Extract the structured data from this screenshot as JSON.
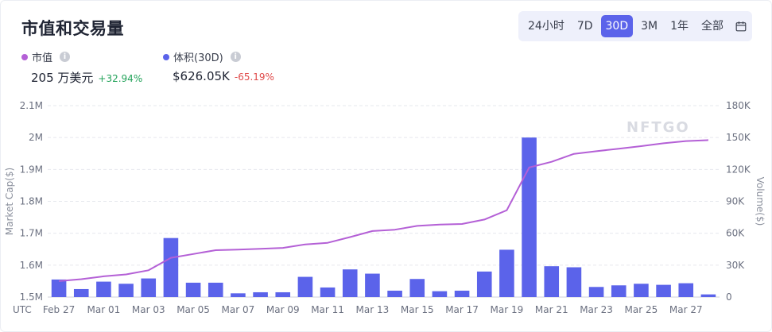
{
  "title": "市值和交易量",
  "range_options": [
    {
      "label": "24小时",
      "active": false
    },
    {
      "label": "7D",
      "active": false
    },
    {
      "label": "30D",
      "active": true
    },
    {
      "label": "3M",
      "active": false
    },
    {
      "label": "1年",
      "active": false
    },
    {
      "label": "全部",
      "active": false
    }
  ],
  "calendar_icon": "calendar-icon",
  "legend": {
    "market_cap": {
      "label": "市值",
      "value": "205 万美元",
      "change": "+32.94%",
      "color": "#b460d6"
    },
    "volume": {
      "label": "体积(30D)",
      "value": "$626.05K",
      "change": "-65.19%",
      "color": "#5b63ea"
    }
  },
  "watermark": "NFTGO",
  "chart_data": {
    "type": "bar+line",
    "x_timezone_label": "UTC",
    "x": [
      "Feb 27",
      "Feb 28",
      "Mar 01",
      "Mar 02",
      "Mar 03",
      "Mar 04",
      "Mar 05",
      "Mar 06",
      "Mar 07",
      "Mar 08",
      "Mar 09",
      "Mar 10",
      "Mar 11",
      "Mar 12",
      "Mar 13",
      "Mar 14",
      "Mar 15",
      "Mar 16",
      "Mar 17",
      "Mar 18",
      "Mar 19",
      "Mar 20",
      "Mar 21",
      "Mar 22",
      "Mar 23",
      "Mar 24",
      "Mar 25",
      "Mar 26",
      "Mar 27",
      "Mar 28"
    ],
    "x_tick_labels": [
      "Feb 27",
      "Mar 01",
      "Mar 03",
      "Mar 05",
      "Mar 07",
      "Mar 09",
      "Mar 11",
      "Mar 13",
      "Mar 15",
      "Mar 17",
      "Mar 19",
      "Mar 21",
      "Mar 23",
      "Mar 25",
      "Mar 27"
    ],
    "ylabel_left": "Market Cap($)",
    "ylabel_right": "Volume($)",
    "ylim_left": [
      1500000,
      2100000
    ],
    "ylim_right": [
      0,
      180000
    ],
    "y_ticks_left": [
      "1.5M",
      "1.6M",
      "1.7M",
      "1.8M",
      "1.9M",
      "2M",
      "2.1M"
    ],
    "y_ticks_right": [
      "0",
      "30K",
      "60K",
      "90K",
      "120K",
      "150K",
      "180K"
    ],
    "grid": true,
    "series": [
      {
        "name": "体积(30D)",
        "type": "bar",
        "axis": "right",
        "color": "#5b63ea",
        "values": [
          16500,
          7500,
          14500,
          12500,
          17500,
          55500,
          13500,
          13500,
          3500,
          4500,
          4500,
          19000,
          9000,
          26000,
          22000,
          6000,
          17000,
          5500,
          6000,
          24000,
          44500,
          150000,
          29000,
          28000,
          9500,
          11000,
          12500,
          11500,
          13000,
          2500
        ]
      },
      {
        "name": "市值",
        "type": "line",
        "axis": "left",
        "color": "#b460d6",
        "values": [
          1550000,
          1556000,
          1565000,
          1571000,
          1584000,
          1623000,
          1635000,
          1647000,
          1649000,
          1651000,
          1654000,
          1665000,
          1670000,
          1688000,
          1707000,
          1711000,
          1723000,
          1727000,
          1729000,
          1743000,
          1772000,
          1906000,
          1924000,
          1949000,
          1957000,
          1965000,
          1973000,
          1982000,
          1989000,
          1992000
        ]
      }
    ]
  }
}
